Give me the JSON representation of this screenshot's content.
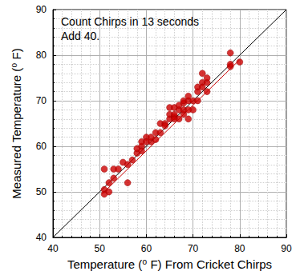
{
  "chart_data": {
    "type": "scatter",
    "xlabel": "Temperature (⁰ F) From Cricket Chirps",
    "ylabel": "Measured Temperature (⁰ F)",
    "annotations": [
      "Count Chirps in 13 seconds",
      "Add 40."
    ],
    "xlim": [
      40,
      90
    ],
    "ylim": [
      40,
      90
    ],
    "xticks": [
      40,
      50,
      60,
      70,
      80,
      90
    ],
    "yticks": [
      40,
      50,
      60,
      70,
      80,
      90
    ],
    "grid": true,
    "series": [
      {
        "type": "scatter",
        "color": "#cc0000",
        "marker": "circle",
        "x": [
          51,
          51,
          51,
          52,
          52,
          53,
          53,
          54,
          55,
          56,
          56,
          57,
          58,
          58,
          59,
          59,
          59,
          60,
          60,
          61,
          61,
          62,
          62,
          63,
          63,
          64,
          65,
          65,
          65,
          66,
          66,
          66,
          67,
          67,
          67,
          68,
          68,
          68,
          68,
          69,
          69,
          69,
          70,
          70,
          71,
          71,
          71,
          72,
          72,
          72,
          73,
          73,
          73,
          78,
          78,
          78,
          80,
          66,
          64,
          69
        ],
        "values": [
          55,
          50.5,
          49.5,
          50,
          52,
          53,
          55,
          55,
          56.5,
          52,
          56,
          57,
          58.5,
          59.5,
          60,
          61,
          59,
          62,
          61,
          61,
          62,
          63,
          61.5,
          63,
          65,
          65,
          66,
          68.5,
          67,
          66.5,
          67,
          68.5,
          66,
          68,
          69,
          67,
          68,
          69.5,
          70,
          66,
          70,
          71,
          68,
          70,
          72,
          73,
          70,
          74,
          76,
          73,
          72,
          74,
          75,
          77.5,
          78,
          80.5,
          78.5,
          66,
          64.5,
          68
        ]
      },
      {
        "type": "line",
        "color": "#000000",
        "line_style": "solid",
        "x": [
          40,
          90
        ],
        "values": [
          40,
          90
        ]
      },
      {
        "type": "line",
        "color": "#cc0000",
        "line_style": "solid",
        "x": [
          50.5,
          80
        ],
        "values": [
          49.5,
          79
        ]
      }
    ]
  }
}
